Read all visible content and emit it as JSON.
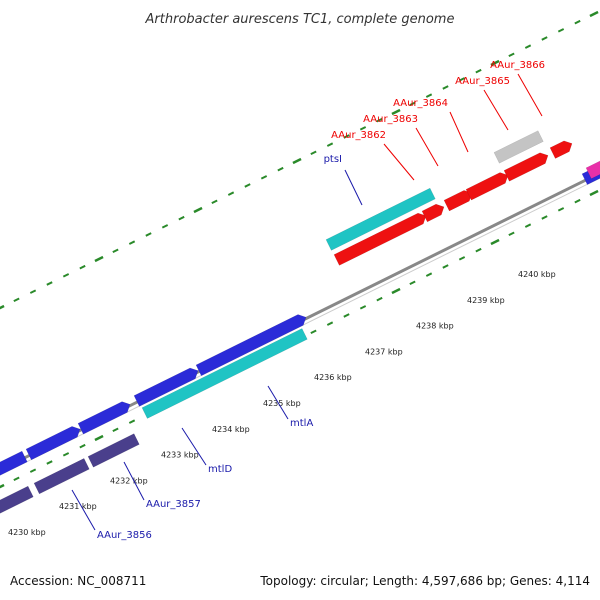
{
  "title": "Arthrobacter aurescens TC1, complete genome",
  "accession_text": "Accession: NC_008711",
  "topology_text": "Topology: circular; Length: 4,597,686 bp; Genes: 4,114",
  "colors": {
    "backbone": "#888888",
    "tick": "#2a8a2a",
    "forward_gene": "#2b2bd8",
    "reverse_gene": "#1fc4c4",
    "red_gene": "#ee1111",
    "gray_gene": "#c4c4c4",
    "dark_gene": "#4a3f8c",
    "pink_gene": "#e830a8",
    "label_red": "#ee0000",
    "label_blue": "#1a1aaa"
  },
  "scale_labels": [
    "4230 kbp",
    "4231 kbp",
    "4232 kbp",
    "4233 kbp",
    "4234 kbp",
    "4235 kbp",
    "4236 kbp",
    "4237 kbp",
    "4238 kbp",
    "4239 kbp",
    "4240 kbp"
  ],
  "genes": [
    {
      "name": "AAur_3856",
      "color": "dark_gene"
    },
    {
      "name": "AAur_3857",
      "color": "dark_gene"
    },
    {
      "name": "mtlD",
      "color": "reverse_gene"
    },
    {
      "name": "mtlA",
      "color": "reverse_gene"
    },
    {
      "name": "ptsI",
      "color": "reverse_gene"
    },
    {
      "name": "AAur_3862",
      "color": "red_gene"
    },
    {
      "name": "AAur_3863",
      "color": "red_gene"
    },
    {
      "name": "AAur_3864",
      "color": "red_gene"
    },
    {
      "name": "AAur_3865",
      "color": "red_gene"
    },
    {
      "name": "AAur_3866",
      "color": "gray_gene"
    }
  ]
}
